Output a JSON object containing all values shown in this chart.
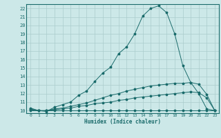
{
  "title": "",
  "xlabel": "Humidex (Indice chaleur)",
  "bg_color": "#cce8e8",
  "grid_color": "#aacccc",
  "line_color": "#1a6b6b",
  "xmin": -0.5,
  "xmax": 23.5,
  "ymin": 9.7,
  "ymax": 22.5,
  "yticks": [
    10,
    11,
    12,
    13,
    14,
    15,
    16,
    17,
    18,
    19,
    20,
    21,
    22
  ],
  "xticks": [
    0,
    1,
    2,
    3,
    4,
    5,
    6,
    7,
    8,
    9,
    10,
    11,
    12,
    13,
    14,
    15,
    16,
    17,
    18,
    19,
    20,
    21,
    22,
    23
  ],
  "series1_x": [
    0,
    1,
    2,
    3,
    4,
    5,
    6,
    7,
    8,
    9,
    10,
    11,
    12,
    13,
    14,
    15,
    16,
    17,
    18,
    19,
    20,
    21,
    22,
    23
  ],
  "series1_y": [
    10.3,
    10.0,
    9.9,
    10.4,
    10.7,
    11.0,
    11.8,
    12.3,
    13.4,
    14.4,
    15.1,
    16.7,
    17.5,
    19.0,
    21.1,
    22.0,
    22.3,
    21.5,
    19.0,
    15.3,
    13.3,
    12.0,
    10.2,
    10.0
  ],
  "series2_x": [
    0,
    1,
    2,
    3,
    4,
    5,
    6,
    7,
    8,
    9,
    10,
    11,
    12,
    13,
    14,
    15,
    16,
    17,
    18,
    19,
    20,
    21,
    22,
    23
  ],
  "series2_y": [
    10.2,
    10.0,
    10.0,
    10.2,
    10.3,
    10.5,
    10.7,
    10.9,
    11.2,
    11.5,
    11.8,
    12.0,
    12.3,
    12.5,
    12.7,
    12.9,
    13.0,
    13.1,
    13.2,
    13.2,
    13.3,
    13.1,
    11.9,
    10.0
  ],
  "series3_x": [
    0,
    1,
    2,
    3,
    4,
    5,
    6,
    7,
    8,
    9,
    10,
    11,
    12,
    13,
    14,
    15,
    16,
    17,
    18,
    19,
    20,
    21,
    22,
    23
  ],
  "series3_y": [
    10.1,
    10.0,
    10.0,
    10.1,
    10.2,
    10.3,
    10.5,
    10.6,
    10.8,
    10.9,
    11.0,
    11.2,
    11.3,
    11.5,
    11.6,
    11.7,
    11.8,
    11.9,
    12.0,
    12.1,
    12.2,
    12.1,
    11.5,
    10.0
  ],
  "series4_x": [
    0,
    1,
    2,
    3,
    4,
    5,
    6,
    7,
    8,
    9,
    10,
    11,
    12,
    13,
    14,
    15,
    16,
    17,
    18,
    19,
    20,
    21,
    22,
    23
  ],
  "series4_y": [
    10.0,
    10.0,
    10.0,
    10.0,
    10.0,
    10.0,
    10.0,
    10.0,
    10.0,
    10.0,
    10.0,
    10.0,
    10.0,
    10.0,
    10.0,
    10.0,
    10.0,
    10.0,
    10.0,
    10.0,
    10.0,
    10.0,
    10.0,
    10.0
  ]
}
